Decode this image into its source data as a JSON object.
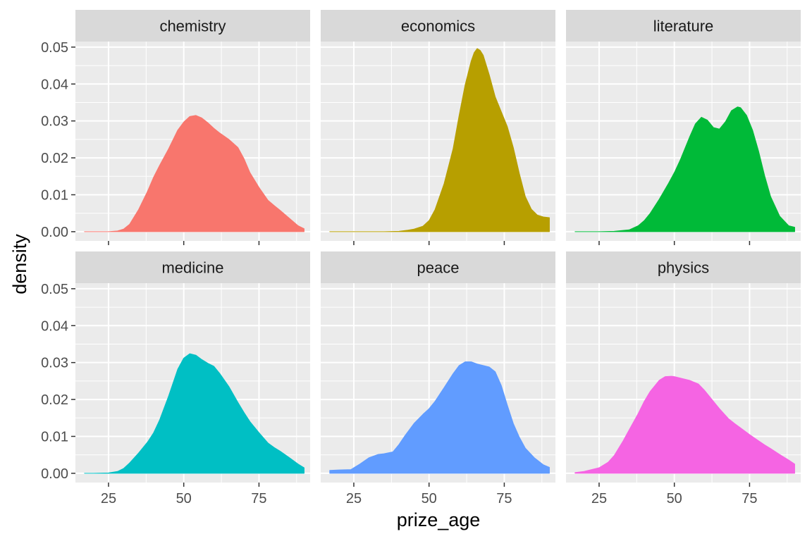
{
  "chart_data": {
    "type": "area",
    "subtype": "faceted-density",
    "xlabel": "prize_age",
    "ylabel": "density",
    "xlim": [
      14,
      92
    ],
    "ylim": [
      -0.0025,
      0.0515
    ],
    "x_ticks": [
      25,
      50,
      75
    ],
    "y_ticks": [
      0.0,
      0.01,
      0.02,
      0.03,
      0.04,
      0.05
    ],
    "y_tick_labels": [
      "0.00",
      "0.01",
      "0.02",
      "0.03",
      "0.04",
      "0.05"
    ],
    "grid": true,
    "legend": "none",
    "facet_rows": 2,
    "facet_cols": 3,
    "panels": [
      {
        "category": "chemistry",
        "color": "#F8766D",
        "x": [
          17,
          20,
          25,
          28,
          30,
          32,
          35,
          38,
          40,
          42,
          45,
          48,
          50,
          52,
          54,
          56,
          58,
          60,
          62,
          65,
          68,
          70,
          72,
          75,
          78,
          80,
          82,
          85,
          88,
          90
        ],
        "y": [
          0.0,
          0.0,
          0.0,
          0.0002,
          0.0007,
          0.002,
          0.006,
          0.011,
          0.0148,
          0.018,
          0.0225,
          0.0275,
          0.0297,
          0.0312,
          0.0315,
          0.0308,
          0.0295,
          0.028,
          0.0267,
          0.025,
          0.0228,
          0.0198,
          0.016,
          0.012,
          0.0085,
          0.0071,
          0.0058,
          0.0037,
          0.0016,
          0.0008
        ]
      },
      {
        "category": "economics",
        "color": "#B79F00",
        "x": [
          17,
          20,
          25,
          30,
          35,
          40,
          43,
          45,
          48,
          50,
          52,
          55,
          58,
          60,
          62,
          64,
          65,
          66,
          67,
          68,
          70,
          72,
          74,
          76,
          78,
          80,
          82,
          84,
          86,
          88,
          90
        ],
        "y": [
          0.0,
          0.0,
          0.0,
          0.0,
          0.0,
          0.0001,
          0.0004,
          0.0007,
          0.0015,
          0.003,
          0.006,
          0.013,
          0.0225,
          0.0315,
          0.0398,
          0.0462,
          0.0485,
          0.0496,
          0.0491,
          0.0478,
          0.0425,
          0.0365,
          0.0325,
          0.0285,
          0.0228,
          0.0158,
          0.0095,
          0.0061,
          0.0045,
          0.004,
          0.0038
        ]
      },
      {
        "category": "literature",
        "color": "#00BA38",
        "x": [
          17,
          20,
          25,
          30,
          35,
          38,
          40,
          42,
          45,
          48,
          50,
          52,
          55,
          57,
          59,
          61,
          63,
          65,
          67,
          69,
          71,
          72,
          74,
          76,
          78,
          80,
          82,
          85,
          88,
          90
        ],
        "y": [
          0.0,
          0.0,
          0.0,
          0.0001,
          0.0005,
          0.0016,
          0.003,
          0.005,
          0.0088,
          0.013,
          0.016,
          0.0195,
          0.0255,
          0.0292,
          0.031,
          0.0302,
          0.0282,
          0.0278,
          0.0298,
          0.0328,
          0.0338,
          0.0336,
          0.0315,
          0.0275,
          0.0218,
          0.0152,
          0.0095,
          0.0042,
          0.0016,
          0.0012
        ]
      },
      {
        "category": "medicine",
        "color": "#00BFC4",
        "x": [
          17,
          20,
          25,
          28,
          30,
          32,
          35,
          38,
          40,
          42,
          45,
          48,
          50,
          52,
          54,
          56,
          58,
          60,
          62,
          65,
          68,
          70,
          72,
          75,
          78,
          80,
          82,
          85,
          88,
          90
        ],
        "y": [
          0.0,
          0.0,
          0.0001,
          0.0005,
          0.0013,
          0.0028,
          0.0055,
          0.0085,
          0.011,
          0.0145,
          0.021,
          0.0282,
          0.0312,
          0.0324,
          0.032,
          0.0308,
          0.0298,
          0.029,
          0.027,
          0.0235,
          0.0192,
          0.0165,
          0.014,
          0.011,
          0.0082,
          0.007,
          0.006,
          0.0043,
          0.0025,
          0.0015
        ]
      },
      {
        "category": "peace",
        "color": "#619CFF",
        "x": [
          17,
          20,
          24,
          27,
          30,
          33,
          35,
          38,
          40,
          42,
          45,
          48,
          50,
          52,
          55,
          58,
          60,
          62,
          64,
          66,
          68,
          70,
          72,
          74,
          76,
          78,
          80,
          82,
          85,
          88,
          90
        ],
        "y": [
          0.0008,
          0.0009,
          0.001,
          0.0025,
          0.0042,
          0.0051,
          0.0053,
          0.0058,
          0.0078,
          0.0102,
          0.0135,
          0.016,
          0.0175,
          0.0195,
          0.0232,
          0.027,
          0.0292,
          0.0302,
          0.0302,
          0.0296,
          0.0292,
          0.0288,
          0.0275,
          0.0238,
          0.0185,
          0.0135,
          0.0098,
          0.0068,
          0.0042,
          0.0023,
          0.0016
        ]
      },
      {
        "category": "physics",
        "color": "#F564E3",
        "x": [
          17,
          20,
          25,
          28,
          30,
          33,
          35,
          38,
          40,
          42,
          45,
          47,
          49,
          50,
          52,
          55,
          58,
          60,
          62,
          65,
          68,
          70,
          72,
          75,
          78,
          80,
          82,
          85,
          88,
          90
        ],
        "y": [
          0.0002,
          0.0005,
          0.0015,
          0.003,
          0.0048,
          0.0088,
          0.0118,
          0.0162,
          0.0195,
          0.0222,
          0.0252,
          0.0262,
          0.0263,
          0.0262,
          0.0258,
          0.0252,
          0.0242,
          0.0225,
          0.0205,
          0.0175,
          0.0148,
          0.0135,
          0.0123,
          0.0105,
          0.0088,
          0.0077,
          0.0067,
          0.0051,
          0.0036,
          0.0025
        ]
      }
    ]
  }
}
